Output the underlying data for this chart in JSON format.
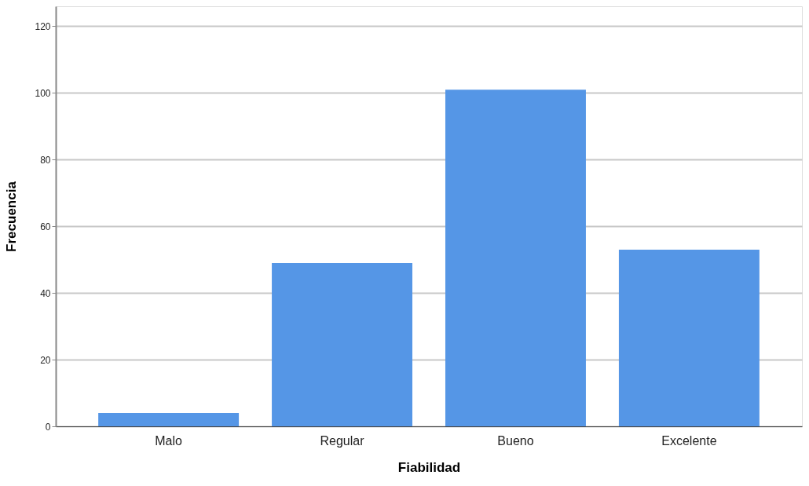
{
  "chart_data": {
    "type": "bar",
    "xlabel": "Fiabilidad",
    "ylabel": "Frecuencia",
    "categories": [
      "Malo",
      "Regular",
      "Bueno",
      "Excelente"
    ],
    "values": [
      4,
      49,
      101,
      53
    ],
    "color": "#5596e6",
    "ylim": [
      0,
      126
    ],
    "yticks": [
      0,
      20,
      40,
      60,
      80,
      100,
      120
    ],
    "grid": "y"
  }
}
